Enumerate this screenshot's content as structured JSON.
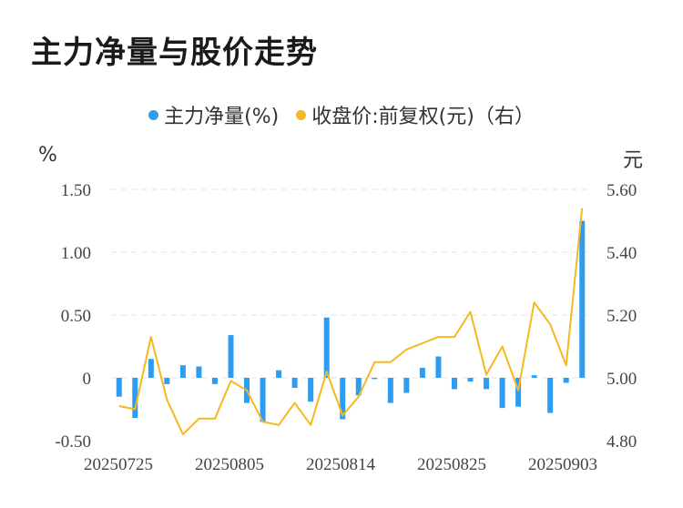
{
  "title": "主力净量与股价走势",
  "legend": [
    {
      "label": "主力净量(%)",
      "color": "#2e9cf0"
    },
    {
      "label": "收盘价:前复权(元)（右）",
      "color": "#f5b820"
    }
  ],
  "left_unit": "%",
  "right_unit": "元",
  "chart_data": {
    "type": "bar",
    "x_tick_labels": [
      "20250725",
      "20250805",
      "20250814",
      "20250825",
      "20250903"
    ],
    "yticks_left": [
      "1.50",
      "1.00",
      "0.50",
      "0",
      "-0.50"
    ],
    "yticks_right": [
      "5.60",
      "5.40",
      "5.20",
      "5.00",
      "4.80"
    ],
    "ylim_left": [
      -0.5,
      1.5
    ],
    "ylim_right": [
      4.8,
      5.6
    ],
    "grid": true,
    "legend_position": "top-center",
    "series": [
      {
        "name": "主力净量(%)",
        "type": "bar",
        "axis": "left",
        "color": "#2e9cf0",
        "values": [
          -0.15,
          -0.32,
          0.15,
          -0.05,
          0.1,
          0.09,
          -0.05,
          0.34,
          -0.2,
          -0.35,
          0.06,
          -0.08,
          -0.19,
          0.48,
          -0.33,
          -0.14,
          -0.01,
          -0.2,
          -0.12,
          0.08,
          0.17,
          -0.09,
          -0.03,
          -0.09,
          -0.24,
          -0.23,
          0.02,
          -0.28,
          -0.04,
          1.25
        ]
      },
      {
        "name": "收盘价:前复权(元)（右）",
        "type": "line",
        "axis": "right",
        "color": "#f5b820",
        "values": [
          4.91,
          4.9,
          5.13,
          4.93,
          4.82,
          4.87,
          4.87,
          4.99,
          4.96,
          4.86,
          4.85,
          4.92,
          4.85,
          5.02,
          4.88,
          4.94,
          5.05,
          5.05,
          5.09,
          5.11,
          5.13,
          5.13,
          5.21,
          5.01,
          5.1,
          4.96,
          5.24,
          5.17,
          5.04,
          5.54
        ]
      }
    ]
  }
}
